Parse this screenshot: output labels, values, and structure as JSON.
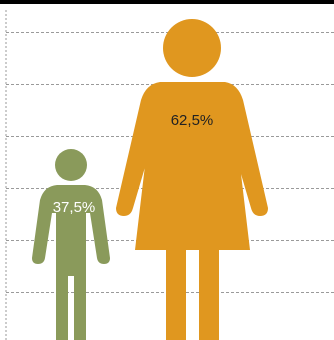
{
  "chart_data": {
    "type": "pictogram",
    "categories": [
      "child",
      "woman"
    ],
    "values": [
      37.5,
      62.5
    ],
    "value_labels": [
      "37,5%",
      "62,5%"
    ],
    "unit": "%",
    "ylim": [
      0,
      100
    ],
    "grid": true,
    "gridline_style": "dashed",
    "icons": [
      "child-icon",
      "woman-icon"
    ],
    "colors": {
      "child": "#8a9a5b",
      "woman": "#e0971f",
      "grid": "#9a9a9a",
      "child_label": "#ffffff",
      "woman_label": "#222222"
    }
  }
}
